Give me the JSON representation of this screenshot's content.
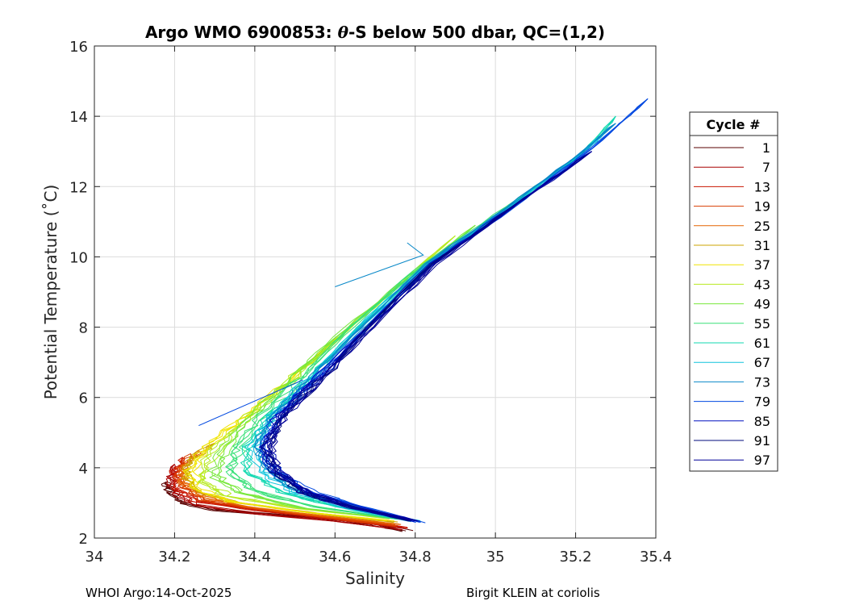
{
  "chart_data": {
    "type": "line",
    "title": "Argo WMO 6900853: θ-S below 500 dbar,  QC=(1,2)",
    "title_parts": {
      "pre": "Argo WMO 6900853: ",
      "sym": "θ",
      "post": "-S below 500 dbar,  QC=(1,2)"
    },
    "xlabel": "Salinity",
    "ylabel": "Potential Temperature (˚C)",
    "xlim": [
      34,
      35.4
    ],
    "ylim": [
      2,
      16
    ],
    "x_ticks": [
      34,
      34.2,
      34.4,
      34.6,
      34.8,
      35,
      35.2,
      35.4
    ],
    "x_tick_labels": [
      "34",
      "34.2",
      "34.4",
      "34.6",
      "34.8",
      "35",
      "35.2",
      "35.4"
    ],
    "y_ticks": [
      2,
      4,
      6,
      8,
      10,
      12,
      14,
      16
    ],
    "y_tick_labels": [
      "2",
      "4",
      "6",
      "8",
      "10",
      "12",
      "14",
      "16"
    ],
    "grid": true,
    "legend": {
      "title": "Cycle #",
      "placement": "right-outside",
      "entries": [
        "1",
        "7",
        "13",
        "19",
        "25",
        "31",
        "37",
        "43",
        "49",
        "55",
        "61",
        "67",
        "73",
        "79",
        "85",
        "91",
        "97"
      ]
    },
    "colors": [
      "#5a0000",
      "#a80000",
      "#c81400",
      "#d83c00",
      "#e66400",
      "#cca400",
      "#f0e400",
      "#b8ea20",
      "#78e83c",
      "#38e078",
      "#10d8b0",
      "#10c4dc",
      "#0888c8",
      "#0048e0",
      "#0010c0",
      "#00087c",
      "#000098"
    ],
    "series_envelope": {
      "description_points": "representative theta-S curve shapes read from the plot, one per legend group",
      "curves": [
        {
          "x": [
            34.78,
            34.7,
            34.5,
            34.3,
            34.22,
            34.19,
            34.18
          ],
          "y": [
            2.2,
            2.4,
            2.62,
            2.8,
            3.0,
            3.3,
            3.6
          ]
        },
        {
          "x": [
            34.77,
            34.6,
            34.4,
            34.25,
            34.2,
            34.19,
            34.2
          ],
          "y": [
            2.25,
            2.5,
            2.7,
            2.95,
            3.3,
            3.7,
            4.1
          ]
        },
        {
          "x": [
            34.77,
            34.6,
            34.4,
            34.26,
            34.21,
            34.2,
            34.22
          ],
          "y": [
            2.3,
            2.55,
            2.8,
            3.05,
            3.4,
            3.85,
            4.3
          ]
        },
        {
          "x": [
            34.76,
            34.58,
            34.4,
            34.27,
            34.22,
            34.21,
            34.24
          ],
          "y": [
            2.35,
            2.6,
            2.85,
            3.1,
            3.5,
            3.9,
            4.4
          ]
        },
        {
          "x": [
            34.76,
            34.56,
            34.38,
            34.27,
            34.22,
            34.22,
            34.26
          ],
          "y": [
            2.4,
            2.65,
            2.9,
            3.2,
            3.6,
            4.0,
            4.5
          ]
        },
        {
          "x": [
            34.75,
            34.55,
            34.36,
            34.26,
            34.23,
            34.24,
            34.3
          ],
          "y": [
            2.45,
            2.7,
            3.0,
            3.3,
            3.7,
            4.2,
            4.7
          ]
        },
        {
          "x": [
            34.74,
            34.52,
            34.34,
            34.26,
            34.24,
            34.28,
            34.38,
            34.5,
            34.62
          ],
          "y": [
            2.5,
            2.75,
            3.05,
            3.4,
            3.9,
            4.6,
            5.5,
            6.6,
            7.8
          ]
        },
        {
          "x": [
            34.74,
            34.5,
            34.33,
            34.27,
            34.28,
            34.34,
            34.44,
            34.56,
            34.7,
            34.9
          ],
          "y": [
            2.55,
            2.85,
            3.2,
            3.6,
            4.2,
            5.0,
            6.0,
            7.2,
            8.6,
            10.6
          ]
        },
        {
          "x": [
            34.75,
            34.52,
            34.36,
            34.3,
            34.32,
            34.38,
            34.48,
            34.6,
            34.76,
            34.95
          ],
          "y": [
            2.55,
            2.85,
            3.3,
            3.8,
            4.5,
            5.3,
            6.4,
            7.7,
            9.2,
            10.9
          ]
        },
        {
          "x": [
            34.76,
            34.55,
            34.4,
            34.34,
            34.36,
            34.42,
            34.52,
            34.64,
            34.8,
            35.0,
            35.2
          ],
          "y": [
            2.55,
            2.9,
            3.35,
            3.9,
            4.6,
            5.5,
            6.6,
            8.0,
            9.6,
            11.2,
            12.8
          ]
        },
        {
          "x": [
            34.78,
            34.6,
            34.46,
            34.38,
            34.38,
            34.44,
            34.54,
            34.66,
            34.82,
            35.02,
            35.22,
            35.3
          ],
          "y": [
            2.55,
            2.9,
            3.3,
            3.9,
            4.6,
            5.5,
            6.6,
            8.0,
            9.7,
            11.3,
            13.0,
            14.0
          ]
        },
        {
          "x": [
            34.8,
            34.64,
            34.5,
            34.42,
            34.4,
            34.44,
            34.54,
            34.66,
            34.82,
            35.02,
            35.22,
            35.28
          ],
          "y": [
            2.5,
            2.85,
            3.3,
            3.9,
            4.6,
            5.5,
            6.6,
            8.0,
            9.7,
            11.3,
            13.0,
            13.6
          ]
        },
        {
          "x": [
            34.8,
            34.66,
            34.52,
            34.44,
            34.41,
            34.45,
            34.55,
            34.67,
            34.83,
            35.03,
            35.22,
            35.3
          ],
          "y": [
            2.48,
            2.85,
            3.3,
            3.9,
            4.6,
            5.5,
            6.6,
            8.0,
            9.8,
            11.4,
            13.0,
            13.8
          ]
        },
        {
          "x": [
            34.81,
            34.68,
            34.54,
            34.45,
            34.42,
            34.46,
            34.56,
            34.68,
            34.84,
            35.04,
            35.24,
            35.38
          ],
          "y": [
            2.45,
            2.85,
            3.3,
            3.9,
            4.6,
            5.5,
            6.6,
            8.0,
            9.8,
            11.4,
            13.1,
            14.5
          ]
        },
        {
          "x": [
            34.8,
            34.66,
            34.53,
            34.45,
            34.42,
            34.46,
            34.56,
            34.68,
            34.84,
            35.04,
            35.24
          ],
          "y": [
            2.48,
            2.85,
            3.3,
            3.9,
            4.6,
            5.5,
            6.6,
            8.0,
            9.8,
            11.4,
            13.0
          ]
        },
        {
          "x": [
            34.79,
            34.65,
            34.52,
            34.45,
            34.43,
            34.47,
            34.57,
            34.68,
            34.84,
            35.04
          ],
          "y": [
            2.5,
            2.85,
            3.3,
            3.9,
            4.6,
            5.5,
            6.6,
            8.0,
            9.8,
            11.4
          ]
        },
        {
          "x": [
            34.79,
            34.64,
            34.52,
            34.45,
            34.43,
            34.47,
            34.57,
            34.69,
            34.85,
            35.04,
            35.24
          ],
          "y": [
            2.5,
            2.85,
            3.3,
            3.9,
            4.6,
            5.5,
            6.6,
            8.0,
            9.8,
            11.4,
            13.0
          ]
        }
      ]
    },
    "stray_segments": [
      {
        "x": [
          34.6,
          34.82,
          34.78
        ],
        "y": [
          9.15,
          10.05,
          10.4
        ]
      },
      {
        "x": [
          34.26,
          34.44,
          34.52
        ],
        "y": [
          5.2,
          6.1,
          6.5
        ]
      }
    ]
  },
  "footer": {
    "left": "WHOI Argo:14-Oct-2025",
    "right": "Birgit KLEIN at coriolis"
  }
}
